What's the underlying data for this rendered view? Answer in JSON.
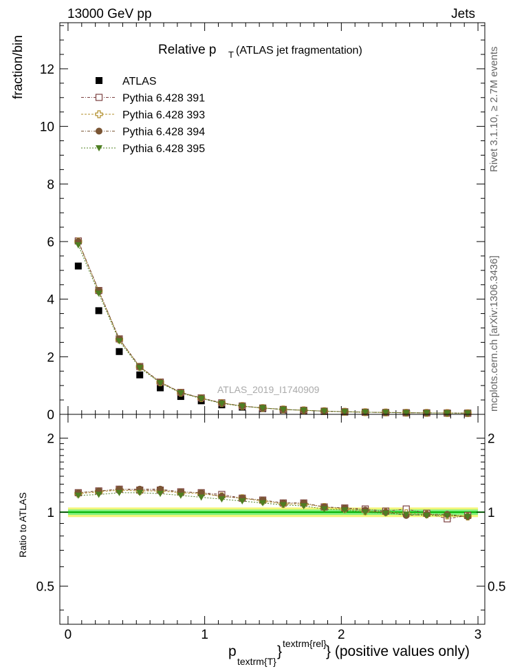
{
  "header": {
    "left": "13000 GeV pp",
    "right": "Jets"
  },
  "side_labels": {
    "rivet": "Rivet 3.1.10, ≥ 2.7M events",
    "mcplots": "mcplots.cern.ch [arXiv:1306.3436]"
  },
  "chart_data": [
    {
      "type": "scatter",
      "title_main": "Relative p",
      "title_sub": "T",
      "title_rest": " (ATLAS jet fragmentation)",
      "ylabel": "fraction/bin",
      "watermark": "ATLAS_2019_I1740909",
      "xlim": [
        -0.06,
        3.05
      ],
      "ylim": [
        0,
        13.6
      ],
      "yticks": [
        0,
        2,
        4,
        6,
        8,
        10,
        12
      ],
      "x": [
        0.075,
        0.225,
        0.375,
        0.525,
        0.675,
        0.825,
        0.975,
        1.125,
        1.275,
        1.425,
        1.575,
        1.725,
        1.875,
        2.025,
        2.175,
        2.325,
        2.475,
        2.625,
        2.775,
        2.925
      ],
      "legend": {
        "placement": "top-left"
      },
      "series": [
        {
          "name": "ATLAS",
          "marker": "filled-square",
          "color": "#000000",
          "values": [
            5.15,
            3.6,
            2.18,
            1.37,
            0.92,
            0.62,
            0.47,
            0.33,
            0.25,
            0.2,
            0.15,
            0.12,
            0.1,
            0.08,
            0.07,
            0.06,
            0.055,
            0.05,
            0.045,
            0.04
          ]
        },
        {
          "name": "Pythia 6.428 391",
          "marker": "open-square",
          "color": "#7b3f3f",
          "values": [
            6.02,
            4.3,
            2.62,
            1.66,
            1.12,
            0.76,
            0.57,
            0.4,
            0.29,
            0.22,
            0.17,
            0.14,
            0.11,
            0.09,
            0.075,
            0.065,
            0.055,
            0.05,
            0.045,
            0.04
          ]
        },
        {
          "name": "Pythia 6.428 393",
          "marker": "open-cross",
          "color": "#b08d2a",
          "values": [
            6.0,
            4.28,
            2.6,
            1.65,
            1.11,
            0.75,
            0.56,
            0.39,
            0.29,
            0.22,
            0.17,
            0.14,
            0.11,
            0.09,
            0.075,
            0.065,
            0.055,
            0.05,
            0.045,
            0.04
          ]
        },
        {
          "name": "Pythia 6.428 394",
          "marker": "filled-circle",
          "color": "#7a5534",
          "values": [
            6.0,
            4.3,
            2.62,
            1.66,
            1.12,
            0.76,
            0.57,
            0.39,
            0.29,
            0.22,
            0.17,
            0.14,
            0.11,
            0.09,
            0.075,
            0.065,
            0.055,
            0.05,
            0.045,
            0.04
          ]
        },
        {
          "name": "Pythia 6.428 395",
          "marker": "filled-triangle-down",
          "color": "#4e7f22",
          "values": [
            5.88,
            4.2,
            2.55,
            1.62,
            1.09,
            0.74,
            0.55,
            0.38,
            0.28,
            0.22,
            0.17,
            0.14,
            0.11,
            0.09,
            0.075,
            0.065,
            0.055,
            0.05,
            0.045,
            0.04
          ]
        }
      ]
    },
    {
      "type": "scatter",
      "ylabel": "Ratio to ATLAS",
      "xlabel_main": "p",
      "xlabel_sub": "textrm{T}",
      "xlabel_sup": "textrm{rel}",
      "xlabel_brace_open": "}",
      "xlabel_rest": "} (positive values only)",
      "xlim": [
        -0.06,
        3.05
      ],
      "ylim": [
        0.35,
        2.5
      ],
      "log_y": true,
      "yticks": [
        0.5,
        1,
        2
      ],
      "xticks": [
        0,
        1,
        2,
        3
      ],
      "reference_line": 1,
      "band_colors": {
        "inner": "#7ef07e",
        "outer": "#f2f57a",
        "line": "#00b000"
      },
      "x": [
        0.075,
        0.225,
        0.375,
        0.525,
        0.675,
        0.825,
        0.975,
        1.125,
        1.275,
        1.425,
        1.575,
        1.725,
        1.875,
        2.025,
        2.175,
        2.325,
        2.475,
        2.625,
        2.775,
        2.925
      ],
      "series": [
        {
          "name": "Pythia 6.428 391",
          "marker": "open-square",
          "color": "#7b3f3f",
          "values": [
            1.2,
            1.22,
            1.24,
            1.23,
            1.23,
            1.21,
            1.2,
            1.18,
            1.14,
            1.12,
            1.09,
            1.09,
            1.05,
            1.04,
            1.03,
            1.01,
            1.03,
            0.99,
            0.94,
            0.97
          ]
        },
        {
          "name": "Pythia 6.428 393",
          "marker": "open-cross",
          "color": "#b08d2a",
          "values": [
            1.19,
            1.21,
            1.23,
            1.22,
            1.22,
            1.2,
            1.19,
            1.16,
            1.14,
            1.11,
            1.08,
            1.08,
            1.05,
            1.03,
            1.01,
            1.0,
            0.99,
            0.98,
            0.97,
            0.96
          ]
        },
        {
          "name": "Pythia 6.428 394",
          "marker": "filled-circle",
          "color": "#7a5534",
          "values": [
            1.2,
            1.22,
            1.24,
            1.24,
            1.24,
            1.21,
            1.2,
            1.16,
            1.14,
            1.12,
            1.09,
            1.09,
            1.05,
            1.04,
            1.02,
            1.0,
            0.97,
            0.98,
            0.98,
            0.96
          ]
        },
        {
          "name": "Pythia 6.428 395",
          "marker": "filled-triangle-down",
          "color": "#4e7f22",
          "values": [
            1.17,
            1.18,
            1.2,
            1.2,
            1.19,
            1.17,
            1.15,
            1.13,
            1.11,
            1.09,
            1.07,
            1.06,
            1.03,
            1.02,
            1.0,
            0.99,
            0.98,
            0.97,
            0.97,
            0.96
          ]
        }
      ]
    }
  ]
}
